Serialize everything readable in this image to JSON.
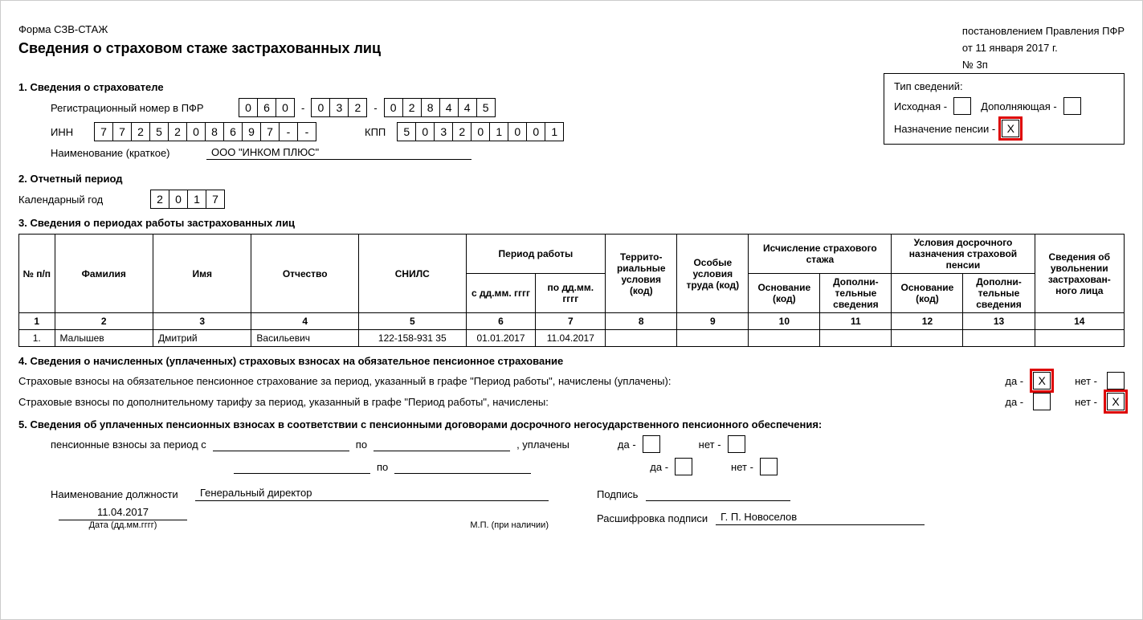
{
  "header": {
    "form_code": "Форма СЗВ-СТАЖ",
    "title": "Сведения о страховом стаже застрахованных лиц",
    "reg_line1": "постановлением Правления ПФР",
    "reg_line2": "от 11 января 2017 г.",
    "reg_line3": "№ 3п"
  },
  "section1": {
    "heading": "1. Сведения о страхователе",
    "reg_label": "Регистрационный номер в ПФР",
    "reg_p1": [
      "0",
      "6",
      "0"
    ],
    "reg_p2": [
      "0",
      "3",
      "2"
    ],
    "reg_p3": [
      "0",
      "2",
      "8",
      "4",
      "4",
      "5"
    ],
    "inn_label": "ИНН",
    "inn": [
      "7",
      "7",
      "2",
      "5",
      "2",
      "0",
      "8",
      "6",
      "9",
      "7",
      "-",
      "-"
    ],
    "kpp_label": "КПП",
    "kpp": [
      "5",
      "0",
      "3",
      "2",
      "0",
      "1",
      "0",
      "0",
      "1"
    ],
    "name_label": "Наименование (краткое)",
    "name": "ООО \"ИНКОМ ПЛЮС\""
  },
  "info_box": {
    "title": "Тип сведений:",
    "opt1_label": "Исходная -",
    "opt1_value": "",
    "opt2_label": "Дополняющая -",
    "opt2_value": "",
    "opt3_label": "Назначение пенсии -",
    "opt3_value": "X"
  },
  "section2": {
    "heading": "2. Отчетный период",
    "year_label": "Календарный год",
    "year": [
      "2",
      "0",
      "1",
      "7"
    ]
  },
  "section3": {
    "heading": "3. Сведения о периодах работы застрахованных лиц",
    "headers": {
      "c1": "№ п/п",
      "c2": "Фамилия",
      "c3": "Имя",
      "c4": "Отчество",
      "c5": "СНИЛС",
      "c6g": "Период работы",
      "c6": "с дд.мм. гггг",
      "c7": "по дд.мм. гггг",
      "c8": "Террито-риальные условия (код)",
      "c9": "Особые условия труда (код)",
      "c10g": "Исчисление страхового стажа",
      "c10": "Основание (код)",
      "c11": "Дополни-тельные сведения",
      "c12g": "Условия досрочного назначения страховой пенсии",
      "c12": "Основание (код)",
      "c13": "Дополни-тельные сведения",
      "c14": "Сведения об увольнении застрахован-ного лица"
    },
    "numrow": [
      "1",
      "2",
      "3",
      "4",
      "5",
      "6",
      "7",
      "8",
      "9",
      "10",
      "11",
      "12",
      "13",
      "14"
    ],
    "rows": [
      {
        "n": "1.",
        "fam": "Малышев",
        "imya": "Дмитрий",
        "otch": "Васильевич",
        "snils": "122-158-931 35",
        "from": "01.01.2017",
        "to": "11.04.2017",
        "c8": "",
        "c9": "",
        "c10": "",
        "c11": "",
        "c12": "",
        "c13": "",
        "c14": ""
      }
    ]
  },
  "section4": {
    "heading": "4. Сведения о начисленных (уплаченных) страховых взносах на обязательное пенсионное страхование",
    "line1": "Страховые взносы на обязательное пенсионное страхование за период, указанный в графе \"Период работы\", начислены (уплачены):",
    "line2": "Страховые взносы по дополнительному тарифу за период, указанный в графе \"Период работы\", начислены:",
    "da": "да -",
    "net": "нет -",
    "l1_da": "X",
    "l1_net": "",
    "l2_da": "",
    "l2_net": "X"
  },
  "section5": {
    "heading": "5. Сведения об уплаченных пенсионных взносах в соответствии с пенсионными договорами досрочного негосударственного пенсионного обеспечения:",
    "line_lbl": "пенсионные взносы за период с",
    "po": "по",
    "upl": ", уплачены",
    "da": "да -",
    "net": "нет -",
    "sig_post_lbl": "Наименование должности",
    "sig_post_val": "Генеральный директор",
    "sig_sign_lbl": "Подпись",
    "sig_decode_lbl": "Расшифровка подписи",
    "sig_decode_val": "Г. П. Новоселов",
    "date_val": "11.04.2017",
    "date_lbl": "Дата (дд.мм.гггг)",
    "mp": "М.П. (при наличии)"
  },
  "colors": {
    "highlight": "#d00000"
  }
}
